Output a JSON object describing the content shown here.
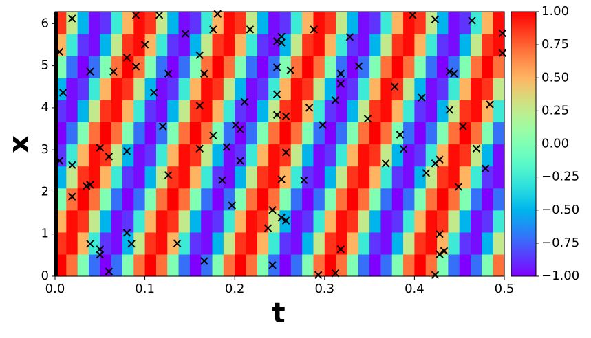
{
  "chart_data": {
    "type": "heatmap",
    "xlabel": "t",
    "ylabel": "x",
    "xlim": [
      0,
      0.5
    ],
    "ylim": [
      0,
      6.283
    ],
    "xticks": [
      {
        "value": 0,
        "label": "0.0"
      },
      0.1,
      0.2,
      0.3,
      0.4,
      0.5
    ],
    "yticks": [
      0,
      1,
      2,
      3,
      4,
      5,
      6
    ],
    "colormap": "rainbow",
    "clim": [
      -1,
      1
    ],
    "cticks": [
      {
        "value": -1,
        "label": "−1.00"
      },
      {
        "value": -0.75,
        "label": "−0.75"
      },
      {
        "value": -0.5,
        "label": "−0.50"
      },
      {
        "value": -0.25,
        "label": "−0.25"
      },
      {
        "value": 0,
        "label": "0.00"
      },
      0.25,
      {
        "value": 0.5,
        "label": "0.50"
      },
      0.75,
      {
        "value": 1,
        "label": "1.00"
      }
    ],
    "heatmap": [
      [
        1,
        0.71,
        0,
        -0.71,
        -1,
        -0.71,
        0,
        0.71,
        1,
        0.71,
        0,
        -0.71,
        -1,
        -0.71,
        0,
        0.71,
        1,
        0.71,
        0,
        -0.71,
        -1,
        -0.71,
        0,
        0.71,
        1,
        0.71,
        0,
        -0.71,
        -1,
        -0.71,
        0,
        0.71,
        1,
        0.71,
        0,
        -0.71,
        -1,
        -0.71,
        0,
        0.71
      ],
      [
        0.87,
        0.97,
        0.5,
        -0.26,
        -0.87,
        -0.97,
        -0.5,
        0.26,
        0.87,
        0.97,
        0.5,
        -0.26,
        -0.87,
        -0.97,
        -0.5,
        0.26,
        0.87,
        0.97,
        0.5,
        -0.26,
        -0.87,
        -0.97,
        -0.5,
        0.26,
        0.87,
        0.97,
        0.5,
        -0.26,
        -0.87,
        -0.97,
        -0.5,
        0.26,
        0.87,
        0.97,
        0.5,
        -0.26,
        -0.87,
        -0.97,
        -0.5,
        0.26
      ],
      [
        0.5,
        0.97,
        0.87,
        0.26,
        -0.5,
        -0.97,
        -0.87,
        -0.26,
        0.5,
        0.97,
        0.87,
        0.26,
        -0.5,
        -0.97,
        -0.87,
        -0.26,
        0.5,
        0.97,
        0.87,
        0.26,
        -0.5,
        -0.97,
        -0.87,
        -0.26,
        0.5,
        0.97,
        0.87,
        0.26,
        -0.5,
        -0.97,
        -0.87,
        -0.26,
        0.5,
        0.97,
        0.87,
        0.26,
        -0.5,
        -0.97,
        -0.87,
        -0.26
      ],
      [
        0,
        0.71,
        1,
        0.71,
        0,
        -0.71,
        -1,
        -0.71,
        0,
        0.71,
        1,
        0.71,
        0,
        -0.71,
        -1,
        -0.71,
        0,
        0.71,
        1,
        0.71,
        0,
        -0.71,
        -1,
        -0.71,
        0,
        0.71,
        1,
        0.71,
        0,
        -0.71,
        -1,
        -0.71,
        0,
        0.71,
        1,
        0.71,
        0,
        -0.71,
        -1,
        -0.71
      ],
      [
        -0.5,
        0.26,
        0.87,
        0.97,
        0.5,
        -0.26,
        -0.87,
        -0.97,
        -0.5,
        0.26,
        0.87,
        0.97,
        0.5,
        -0.26,
        -0.87,
        -0.97,
        -0.5,
        0.26,
        0.87,
        0.97,
        0.5,
        -0.26,
        -0.87,
        -0.97,
        -0.5,
        0.26,
        0.87,
        0.97,
        0.5,
        -0.26,
        -0.87,
        -0.97,
        -0.5,
        0.26,
        0.87,
        0.97,
        0.5,
        -0.26,
        -0.87,
        -0.97
      ],
      [
        -0.87,
        -0.26,
        0.5,
        0.97,
        0.87,
        0.26,
        -0.5,
        -0.97,
        -0.87,
        -0.26,
        0.5,
        0.97,
        0.87,
        0.26,
        -0.5,
        -0.97,
        -0.87,
        -0.26,
        0.5,
        0.97,
        0.87,
        0.26,
        -0.5,
        -0.97,
        -0.87,
        -0.26,
        0.5,
        0.97,
        0.87,
        0.26,
        -0.5,
        -0.97,
        -0.87,
        -0.26,
        0.5,
        0.97,
        0.87,
        0.26,
        -0.5,
        -0.97
      ],
      [
        -1,
        -0.71,
        0,
        0.71,
        1,
        0.71,
        0,
        -0.71,
        -1,
        -0.71,
        0,
        0.71,
        1,
        0.71,
        0,
        -0.71,
        -1,
        -0.71,
        0,
        0.71,
        1,
        0.71,
        0,
        -0.71,
        -1,
        -0.71,
        0,
        0.71,
        1,
        0.71,
        0,
        -0.71,
        -1,
        -0.71,
        0,
        0.71,
        1,
        0.71,
        0,
        -0.71
      ],
      [
        -0.87,
        -0.97,
        -0.5,
        0.26,
        0.87,
        0.97,
        0.5,
        -0.26,
        -0.87,
        -0.97,
        -0.5,
        0.26,
        0.87,
        0.97,
        0.5,
        -0.26,
        -0.87,
        -0.97,
        -0.5,
        0.26,
        0.87,
        0.97,
        0.5,
        -0.26,
        -0.87,
        -0.97,
        -0.5,
        0.26,
        0.87,
        0.97,
        0.5,
        -0.26,
        -0.87,
        -0.97,
        -0.5,
        0.26,
        0.87,
        0.97,
        0.5,
        -0.26
      ],
      [
        -0.5,
        -0.97,
        -0.87,
        -0.26,
        0.5,
        0.97,
        0.87,
        0.26,
        -0.5,
        -0.97,
        -0.87,
        -0.26,
        0.5,
        0.97,
        0.87,
        0.26,
        -0.5,
        -0.97,
        -0.87,
        -0.26,
        0.5,
        0.97,
        0.87,
        0.26,
        -0.5,
        -0.97,
        -0.87,
        -0.26,
        0.5,
        0.97,
        0.87,
        0.26,
        -0.5,
        -0.97,
        -0.87,
        -0.26,
        0.5,
        0.97,
        0.87,
        0.26
      ],
      [
        0,
        -0.71,
        -1,
        -0.71,
        0,
        0.71,
        1,
        0.71,
        0,
        -0.71,
        -1,
        -0.71,
        0,
        0.71,
        1,
        0.71,
        0,
        -0.71,
        -1,
        -0.71,
        0,
        0.71,
        1,
        0.71,
        0,
        -0.71,
        -1,
        -0.71,
        0,
        0.71,
        1,
        0.71,
        0,
        -0.71,
        -1,
        -0.71,
        0,
        0.71,
        1,
        0.71
      ],
      [
        0.5,
        -0.26,
        -0.87,
        -0.97,
        -0.5,
        0.26,
        0.87,
        0.97,
        0.5,
        -0.26,
        -0.87,
        -0.97,
        -0.5,
        0.26,
        0.87,
        0.97,
        0.5,
        -0.26,
        -0.87,
        -0.97,
        -0.5,
        0.26,
        0.87,
        0.97,
        0.5,
        -0.26,
        -0.87,
        -0.97,
        -0.5,
        0.26,
        0.87,
        0.97,
        0.5,
        -0.26,
        -0.87,
        -0.97,
        -0.5,
        0.26,
        0.87,
        0.97
      ],
      [
        0.87,
        0.26,
        -0.5,
        -0.97,
        -0.87,
        -0.26,
        0.5,
        0.97,
        0.87,
        0.26,
        -0.5,
        -0.97,
        -0.87,
        -0.26,
        0.5,
        0.97,
        0.87,
        0.26,
        -0.5,
        -0.97,
        -0.87,
        -0.26,
        0.5,
        0.97,
        0.87,
        0.26,
        -0.5,
        -0.97,
        -0.87,
        -0.26,
        0.5,
        0.97,
        0.87,
        0.26,
        -0.5,
        -0.97,
        -0.87,
        -0.26,
        0.5,
        0.97
      ]
    ],
    "scatter": {
      "marker": "x",
      "color": "#000000",
      "x": [
        0.005,
        0.009,
        0.005,
        0.019,
        0.019,
        0.019,
        0.035,
        0.039,
        0.039,
        0.039,
        0.05,
        0.05,
        0.05,
        0.06,
        0.06,
        0.065,
        0.08,
        0.08,
        0.08,
        0.085,
        0.09,
        0.09,
        0.1,
        0.11,
        0.116,
        0.12,
        0.126,
        0.126,
        0.136,
        0.145,
        0.161,
        0.161,
        0.161,
        0.166,
        0.166,
        0.176,
        0.176,
        0.181,
        0.186,
        0.191,
        0.197,
        0.201,
        0.206,
        0.206,
        0.211,
        0.217,
        0.237,
        0.242,
        0.242,
        0.247,
        0.247,
        0.247,
        0.247,
        0.252,
        0.252,
        0.252,
        0.252,
        0.257,
        0.257,
        0.257,
        0.262,
        0.277,
        0.283,
        0.288,
        0.293,
        0.298,
        0.312,
        0.312,
        0.318,
        0.318,
        0.318,
        0.328,
        0.338,
        0.348,
        0.368,
        0.378,
        0.384,
        0.388,
        0.398,
        0.408,
        0.413,
        0.423,
        0.423,
        0.423,
        0.428,
        0.428,
        0.428,
        0.433,
        0.439,
        0.439,
        0.444,
        0.449,
        0.454,
        0.464,
        0.469,
        0.479,
        0.484,
        0.498,
        0.498
      ],
      "y": [
        5.33,
        4.36,
        2.74,
        6.12,
        2.64,
        1.89,
        2.14,
        2.17,
        4.86,
        0.77,
        3.05,
        0.64,
        0.51,
        0.11,
        2.84,
        4.86,
        5.19,
        2.97,
        1.03,
        0.77,
        4.98,
        6.2,
        5.5,
        4.36,
        6.2,
        3.56,
        4.81,
        2.4,
        0.78,
        5.76,
        5.25,
        4.05,
        3.03,
        0.36,
        4.81,
        5.86,
        3.34,
        6.23,
        2.28,
        3.07,
        1.68,
        3.59,
        3.49,
        2.74,
        4.14,
        5.86,
        1.14,
        0.26,
        1.57,
        5.58,
        4.96,
        4.32,
        3.83,
        5.69,
        5.55,
        2.3,
        1.39,
        1.32,
        2.94,
        3.8,
        4.89,
        2.28,
        4.0,
        5.86,
        0.03,
        3.59,
        0.07,
        4.18,
        4.81,
        4.57,
        0.64,
        5.68,
        4.99,
        3.74,
        2.68,
        4.5,
        3.36,
        3.02,
        6.2,
        4.24,
        2.45,
        6.1,
        0.03,
        2.68,
        2.77,
        1.0,
        0.52,
        0.6,
        4.86,
        3.95,
        4.81,
        2.12,
        3.56,
        6.07,
        3.03,
        2.56,
        4.08,
        5.77,
        5.3
      ]
    }
  }
}
